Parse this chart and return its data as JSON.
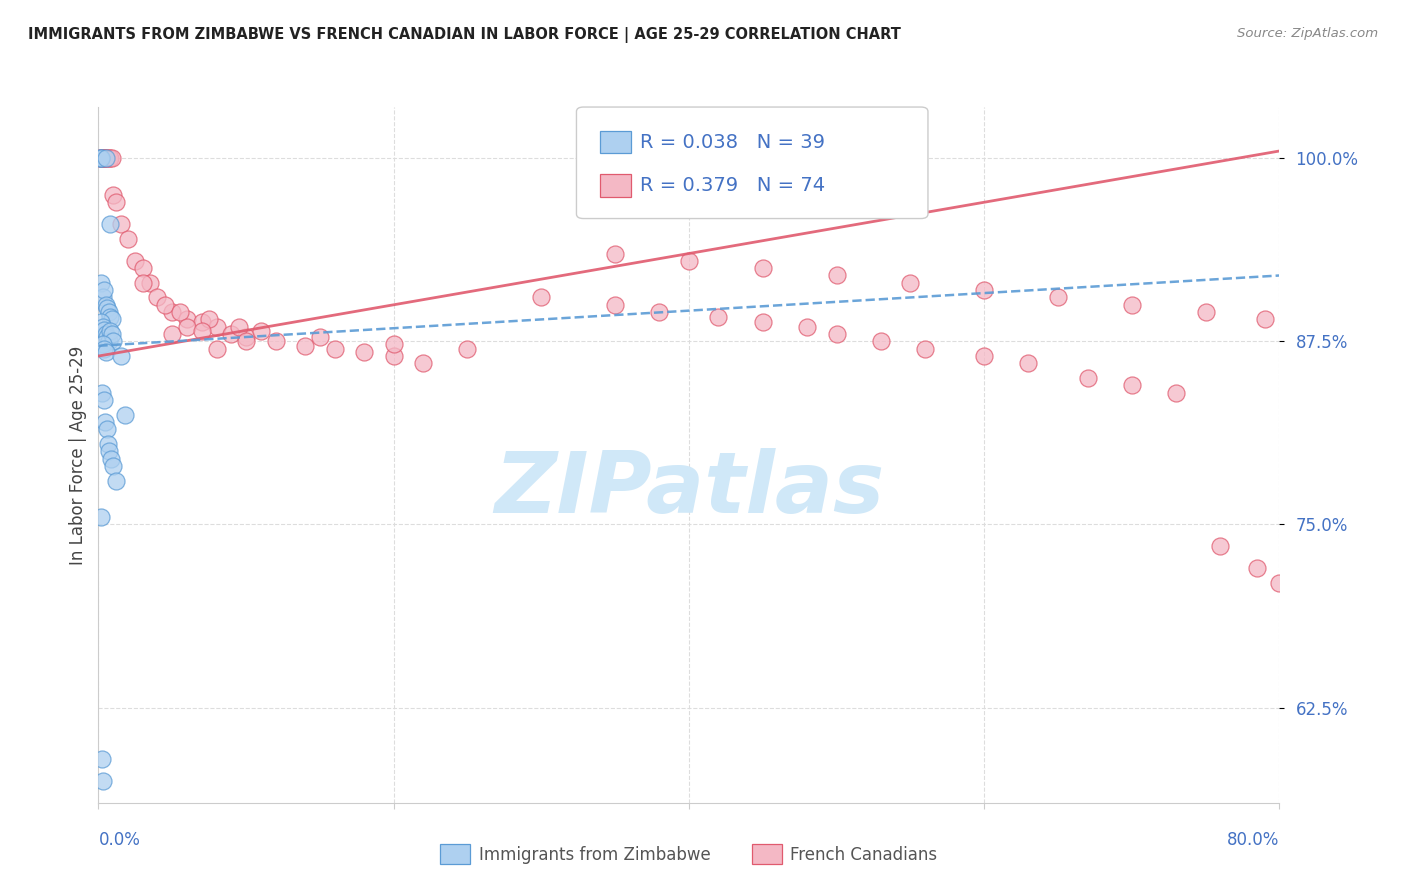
{
  "title": "IMMIGRANTS FROM ZIMBABWE VS FRENCH CANADIAN IN LABOR FORCE | AGE 25-29 CORRELATION CHART",
  "source": "Source: ZipAtlas.com",
  "ylabel": "In Labor Force | Age 25-29",
  "yticks": [
    62.5,
    75.0,
    87.5,
    100.0
  ],
  "ytick_labels": [
    "62.5%",
    "75.0%",
    "87.5%",
    "100.0%"
  ],
  "xtick_left_label": "0.0%",
  "xtick_right_label": "80.0%",
  "xmin": 0.0,
  "xmax": 80.0,
  "ymin": 56.0,
  "ymax": 103.5,
  "r_zimbabwe": 0.038,
  "n_zimbabwe": 39,
  "r_french": 0.379,
  "n_french": 74,
  "legend_label_zimbabwe": "Immigrants from Zimbabwe",
  "legend_label_french": "French Canadians",
  "color_zimbabwe_fill": "#aed0f0",
  "color_zimbabwe_edge": "#5b9bd5",
  "color_french_fill": "#f4b8c5",
  "color_french_edge": "#e05a6e",
  "color_trend_zimbabwe": "#5b9bd5",
  "color_trend_french": "#e05a6e",
  "color_axis_blue": "#4472c4",
  "color_title": "#222222",
  "color_source": "#888888",
  "color_grid": "#dddddd",
  "color_watermark": "#d0e8f8",
  "watermark_text": "ZIPatlas",
  "zimbabwe_x": [
    0.1,
    0.15,
    0.2,
    0.5,
    0.8,
    0.2,
    0.3,
    0.4,
    0.5,
    0.6,
    0.7,
    0.8,
    0.9,
    0.2,
    0.3,
    0.4,
    0.5,
    0.6,
    0.7,
    0.8,
    0.9,
    1.0,
    0.3,
    0.4,
    0.5,
    1.5,
    0.25,
    0.35,
    0.45,
    1.8,
    0.55,
    0.65,
    0.75,
    0.85,
    1.0,
    1.2,
    0.2,
    0.25,
    0.3
  ],
  "zimbabwe_y": [
    100.0,
    100.0,
    100.0,
    100.0,
    95.5,
    91.5,
    90.5,
    91.0,
    90.0,
    89.8,
    89.5,
    89.2,
    89.0,
    88.8,
    88.5,
    88.3,
    88.0,
    87.8,
    87.5,
    88.2,
    88.0,
    87.5,
    87.3,
    87.0,
    86.8,
    86.5,
    84.0,
    83.5,
    82.0,
    82.5,
    81.5,
    80.5,
    80.0,
    79.5,
    79.0,
    78.0,
    75.5,
    59.0,
    57.5
  ],
  "french_x": [
    0.1,
    0.15,
    0.2,
    0.25,
    0.3,
    0.35,
    0.4,
    0.45,
    0.5,
    0.6,
    0.7,
    0.8,
    0.9,
    1.0,
    1.2,
    1.5,
    2.0,
    2.5,
    3.0,
    3.5,
    4.0,
    5.0,
    6.0,
    7.0,
    8.0,
    9.0,
    10.0,
    12.0,
    14.0,
    16.0,
    18.0,
    20.0,
    22.0,
    3.0,
    4.5,
    5.5,
    7.5,
    9.5,
    11.0,
    15.0,
    20.0,
    25.0,
    5.0,
    8.0,
    6.0,
    7.0,
    10.0,
    35.0,
    40.0,
    45.0,
    50.0,
    55.0,
    60.0,
    65.0,
    70.0,
    75.0,
    79.0,
    30.0,
    35.0,
    38.0,
    42.0,
    45.0,
    48.0,
    50.0,
    53.0,
    56.0,
    60.0,
    63.0,
    67.0,
    70.0,
    73.0,
    76.0,
    78.5,
    80.0
  ],
  "french_y": [
    100.0,
    100.0,
    100.0,
    100.0,
    100.0,
    100.0,
    100.0,
    100.0,
    100.0,
    100.0,
    100.0,
    100.0,
    100.0,
    97.5,
    97.0,
    95.5,
    94.5,
    93.0,
    92.5,
    91.5,
    90.5,
    89.5,
    89.0,
    88.8,
    88.5,
    88.0,
    87.8,
    87.5,
    87.2,
    87.0,
    86.8,
    86.5,
    86.0,
    91.5,
    90.0,
    89.5,
    89.0,
    88.5,
    88.2,
    87.8,
    87.3,
    87.0,
    88.0,
    87.0,
    88.5,
    88.2,
    87.5,
    93.5,
    93.0,
    92.5,
    92.0,
    91.5,
    91.0,
    90.5,
    90.0,
    89.5,
    89.0,
    90.5,
    90.0,
    89.5,
    89.2,
    88.8,
    88.5,
    88.0,
    87.5,
    87.0,
    86.5,
    86.0,
    85.0,
    84.5,
    84.0,
    73.5,
    72.0,
    71.0
  ]
}
